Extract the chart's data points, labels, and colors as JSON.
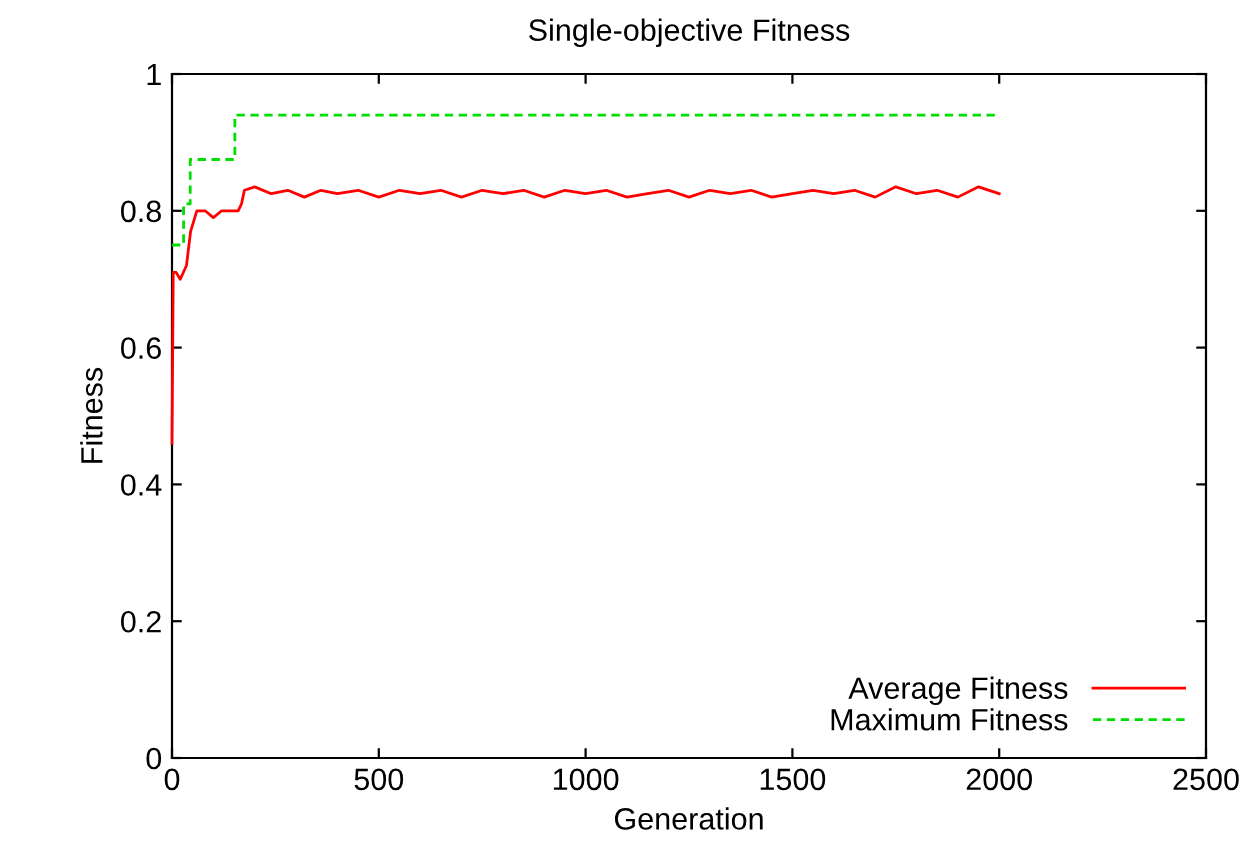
{
  "chart_data": {
    "type": "line",
    "title": "Single-objective Fitness",
    "xlabel": "Generation",
    "ylabel": "Fitness",
    "xlim": [
      0,
      2500
    ],
    "ylim": [
      0,
      1
    ],
    "xticks": [
      0,
      500,
      1000,
      1500,
      2000,
      2500
    ],
    "yticks": [
      0,
      0.2,
      0.4,
      0.6,
      0.8,
      1
    ],
    "grid": false,
    "legend": "bottom right",
    "series": [
      {
        "name": "Average Fitness",
        "color": "#ff0000",
        "line_style": "solid",
        "x": [
          0,
          3,
          10,
          20,
          35,
          45,
          60,
          80,
          100,
          120,
          140,
          160,
          168,
          175,
          200,
          240,
          280,
          320,
          360,
          400,
          450,
          500,
          550,
          600,
          650,
          700,
          750,
          800,
          850,
          900,
          950,
          1000,
          1050,
          1100,
          1150,
          1200,
          1250,
          1300,
          1350,
          1400,
          1450,
          1500,
          1550,
          1600,
          1650,
          1700,
          1750,
          1800,
          1850,
          1900,
          1950,
          2000
        ],
        "values": [
          0.46,
          0.71,
          0.71,
          0.7,
          0.72,
          0.77,
          0.8,
          0.8,
          0.79,
          0.8,
          0.8,
          0.8,
          0.81,
          0.83,
          0.835,
          0.825,
          0.83,
          0.82,
          0.83,
          0.825,
          0.83,
          0.82,
          0.83,
          0.825,
          0.83,
          0.82,
          0.83,
          0.825,
          0.83,
          0.82,
          0.83,
          0.825,
          0.83,
          0.82,
          0.825,
          0.83,
          0.82,
          0.83,
          0.825,
          0.83,
          0.82,
          0.825,
          0.83,
          0.825,
          0.83,
          0.82,
          0.835,
          0.825,
          0.83,
          0.82,
          0.835,
          0.825
        ]
      },
      {
        "name": "Maximum Fitness",
        "color": "#00dd00",
        "type": "step",
        "line_style": "dashed",
        "x": [
          0,
          28,
          44,
          152,
          2000
        ],
        "values": [
          0.75,
          0.81,
          0.875,
          0.94,
          0.94
        ]
      }
    ]
  }
}
